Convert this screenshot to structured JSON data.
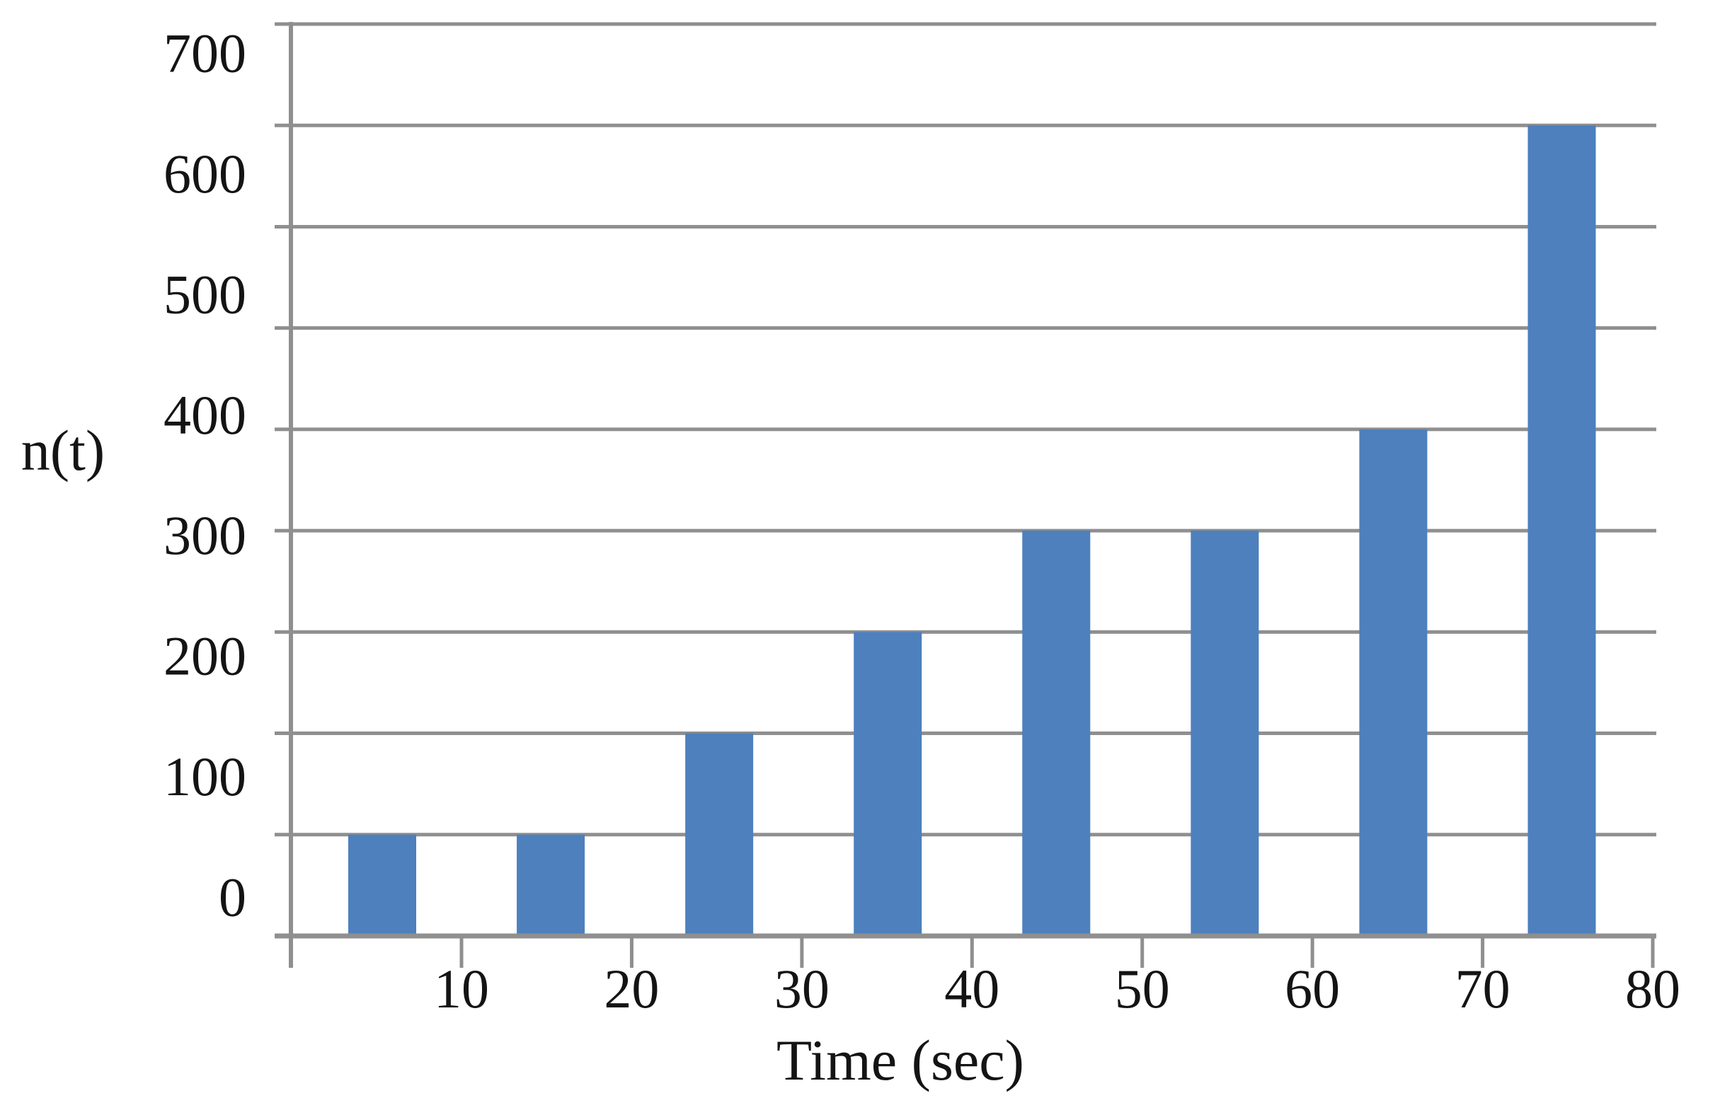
{
  "figure": {
    "kind": "static bar chart figure",
    "background": "#ffffff"
  },
  "chart_data": {
    "type": "bar",
    "title": "",
    "xlabel": "Time (sec)",
    "ylabel": "n(t)",
    "x": [
      5,
      15,
      25,
      35,
      45,
      55,
      65,
      75
    ],
    "values": [
      50,
      50,
      150,
      225,
      300,
      300,
      400,
      640
    ],
    "bar_top_gridline_index": [
      8,
      8,
      7,
      6,
      5,
      5,
      4,
      1
    ],
    "x_tick_labels": [
      "10",
      "20",
      "30",
      "40",
      "50",
      "60",
      "70",
      "80"
    ],
    "y_tick_labels": [
      "700",
      "600",
      "500",
      "400",
      "300",
      "200",
      "100",
      "0"
    ],
    "xlim": [
      0,
      80
    ],
    "ylim": [
      0,
      700
    ],
    "gridline_intervals": 9,
    "grid": "horizontal",
    "legend": "none",
    "bar_color": "#4d80bd",
    "line_color": "#8f8f8f",
    "text_color": "#141414"
  }
}
